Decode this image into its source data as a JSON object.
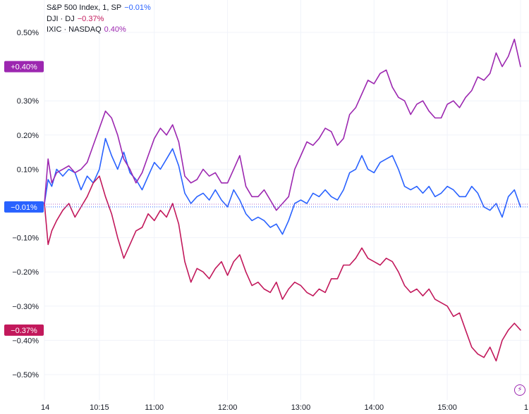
{
  "legend": [
    {
      "name": "S&P 500 Index, 1, SP",
      "value": "−0.01%",
      "color": "#2962ff"
    },
    {
      "name": "DJI · DJ",
      "value": "−0.37%",
      "color": "#c2185b"
    },
    {
      "name": "IXIC · NASDAQ",
      "value": "0.40%",
      "color": "#9c27b0"
    }
  ],
  "badges": [
    {
      "label": "+0.40%",
      "value": 0.4,
      "color": "#9c27b0"
    },
    {
      "label": "−0.01%",
      "value": -0.01,
      "color": "#2962ff"
    },
    {
      "label": "−0.37%",
      "value": -0.37,
      "color": "#c2185b"
    }
  ],
  "quick_action_icon": "lightning-icon",
  "chart_data": {
    "type": "line",
    "y_unit": "%",
    "ylim": [
      -0.55,
      0.55
    ],
    "xlim": [
      "09:30",
      "16:00"
    ],
    "y_ticks": [
      0.5,
      0.3,
      0.2,
      0.1,
      -0.1,
      -0.2,
      -0.3,
      -0.4,
      -0.5
    ],
    "y_tick_labels": [
      "0.50%",
      "0.30%",
      "0.20%",
      "0.10%",
      "−0.10%",
      "−0.20%",
      "−0.30%",
      "−0.40%",
      "−0.50%"
    ],
    "x_ticks": [
      "09:30",
      "10:15",
      "11:00",
      "12:00",
      "13:00",
      "14:00",
      "15:00",
      "16:00"
    ],
    "x_tick_labels": [
      "14",
      "10:15",
      "11:00",
      "12:00",
      "13:00",
      "14:00",
      "15:00",
      "1"
    ],
    "grid": true,
    "series": [
      {
        "name": "S&P 500 Index, 1, SP",
        "color": "#2962ff",
        "points": [
          [
            "09:30",
            0.0
          ],
          [
            "09:33",
            0.07
          ],
          [
            "09:36",
            0.05
          ],
          [
            "09:40",
            0.1
          ],
          [
            "09:45",
            0.08
          ],
          [
            "09:50",
            0.1
          ],
          [
            "09:55",
            0.09
          ],
          [
            "10:00",
            0.04
          ],
          [
            "10:05",
            0.08
          ],
          [
            "10:10",
            0.06
          ],
          [
            "10:15",
            0.1
          ],
          [
            "10:20",
            0.19
          ],
          [
            "10:25",
            0.14
          ],
          [
            "10:30",
            0.1
          ],
          [
            "10:35",
            0.15
          ],
          [
            "10:40",
            0.09
          ],
          [
            "10:45",
            0.07
          ],
          [
            "10:50",
            0.04
          ],
          [
            "10:55",
            0.08
          ],
          [
            "11:00",
            0.12
          ],
          [
            "11:05",
            0.1
          ],
          [
            "11:10",
            0.13
          ],
          [
            "11:15",
            0.16
          ],
          [
            "11:20",
            0.11
          ],
          [
            "11:25",
            0.03
          ],
          [
            "11:30",
            0.0
          ],
          [
            "11:35",
            0.02
          ],
          [
            "11:40",
            0.03
          ],
          [
            "11:45",
            0.01
          ],
          [
            "11:50",
            0.04
          ],
          [
            "11:55",
            0.01
          ],
          [
            "12:00",
            -0.01
          ],
          [
            "12:05",
            0.04
          ],
          [
            "12:10",
            0.01
          ],
          [
            "12:15",
            -0.03
          ],
          [
            "12:20",
            -0.05
          ],
          [
            "12:25",
            -0.04
          ],
          [
            "12:30",
            -0.05
          ],
          [
            "12:35",
            -0.07
          ],
          [
            "12:40",
            -0.06
          ],
          [
            "12:45",
            -0.09
          ],
          [
            "12:50",
            -0.05
          ],
          [
            "12:55",
            0.0
          ],
          [
            "13:00",
            0.01
          ],
          [
            "13:05",
            0.0
          ],
          [
            "13:10",
            0.03
          ],
          [
            "13:15",
            0.02
          ],
          [
            "13:20",
            0.04
          ],
          [
            "13:25",
            0.02
          ],
          [
            "13:30",
            0.01
          ],
          [
            "13:35",
            0.04
          ],
          [
            "13:40",
            0.09
          ],
          [
            "13:45",
            0.1
          ],
          [
            "13:50",
            0.14
          ],
          [
            "13:55",
            0.1
          ],
          [
            "14:00",
            0.09
          ],
          [
            "14:05",
            0.12
          ],
          [
            "14:10",
            0.13
          ],
          [
            "14:15",
            0.14
          ],
          [
            "14:20",
            0.1
          ],
          [
            "14:25",
            0.05
          ],
          [
            "14:30",
            0.04
          ],
          [
            "14:35",
            0.05
          ],
          [
            "14:40",
            0.03
          ],
          [
            "14:45",
            0.05
          ],
          [
            "14:50",
            0.02
          ],
          [
            "14:55",
            0.03
          ],
          [
            "15:00",
            0.05
          ],
          [
            "15:05",
            0.04
          ],
          [
            "15:10",
            0.02
          ],
          [
            "15:15",
            0.02
          ],
          [
            "15:20",
            0.05
          ],
          [
            "15:25",
            0.03
          ],
          [
            "15:30",
            -0.01
          ],
          [
            "15:35",
            -0.02
          ],
          [
            "15:40",
            0.0
          ],
          [
            "15:45",
            -0.04
          ],
          [
            "15:50",
            0.02
          ],
          [
            "15:55",
            0.04
          ],
          [
            "16:00",
            -0.01
          ]
        ]
      },
      {
        "name": "DJI · DJ",
        "color": "#c2185b",
        "points": [
          [
            "09:30",
            0.0
          ],
          [
            "09:33",
            -0.12
          ],
          [
            "09:36",
            -0.08
          ],
          [
            "09:40",
            -0.05
          ],
          [
            "09:45",
            -0.02
          ],
          [
            "09:50",
            0.0
          ],
          [
            "09:55",
            -0.04
          ],
          [
            "10:00",
            -0.01
          ],
          [
            "10:05",
            0.02
          ],
          [
            "10:10",
            0.06
          ],
          [
            "10:15",
            0.08
          ],
          [
            "10:20",
            0.02
          ],
          [
            "10:25",
            -0.03
          ],
          [
            "10:30",
            -0.1
          ],
          [
            "10:35",
            -0.16
          ],
          [
            "10:40",
            -0.12
          ],
          [
            "10:45",
            -0.08
          ],
          [
            "10:50",
            -0.07
          ],
          [
            "10:55",
            -0.03
          ],
          [
            "11:00",
            -0.05
          ],
          [
            "11:05",
            -0.02
          ],
          [
            "11:10",
            -0.04
          ],
          [
            "11:15",
            0.0
          ],
          [
            "11:20",
            -0.06
          ],
          [
            "11:25",
            -0.17
          ],
          [
            "11:30",
            -0.23
          ],
          [
            "11:35",
            -0.19
          ],
          [
            "11:40",
            -0.2
          ],
          [
            "11:45",
            -0.22
          ],
          [
            "11:50",
            -0.19
          ],
          [
            "11:55",
            -0.17
          ],
          [
            "12:00",
            -0.21
          ],
          [
            "12:05",
            -0.17
          ],
          [
            "12:10",
            -0.15
          ],
          [
            "12:15",
            -0.2
          ],
          [
            "12:20",
            -0.24
          ],
          [
            "12:25",
            -0.23
          ],
          [
            "12:30",
            -0.25
          ],
          [
            "12:35",
            -0.26
          ],
          [
            "12:40",
            -0.23
          ],
          [
            "12:45",
            -0.28
          ],
          [
            "12:50",
            -0.25
          ],
          [
            "12:55",
            -0.23
          ],
          [
            "13:00",
            -0.24
          ],
          [
            "13:05",
            -0.26
          ],
          [
            "13:10",
            -0.27
          ],
          [
            "13:15",
            -0.25
          ],
          [
            "13:20",
            -0.26
          ],
          [
            "13:25",
            -0.22
          ],
          [
            "13:30",
            -0.22
          ],
          [
            "13:35",
            -0.18
          ],
          [
            "13:40",
            -0.18
          ],
          [
            "13:45",
            -0.16
          ],
          [
            "13:50",
            -0.13
          ],
          [
            "13:55",
            -0.16
          ],
          [
            "14:00",
            -0.17
          ],
          [
            "14:05",
            -0.18
          ],
          [
            "14:10",
            -0.16
          ],
          [
            "14:15",
            -0.17
          ],
          [
            "14:20",
            -0.2
          ],
          [
            "14:25",
            -0.24
          ],
          [
            "14:30",
            -0.26
          ],
          [
            "14:35",
            -0.25
          ],
          [
            "14:40",
            -0.27
          ],
          [
            "14:45",
            -0.25
          ],
          [
            "14:50",
            -0.28
          ],
          [
            "14:55",
            -0.29
          ],
          [
            "15:00",
            -0.3
          ],
          [
            "15:05",
            -0.33
          ],
          [
            "15:10",
            -0.32
          ],
          [
            "15:15",
            -0.37
          ],
          [
            "15:20",
            -0.42
          ],
          [
            "15:25",
            -0.44
          ],
          [
            "15:30",
            -0.45
          ],
          [
            "15:35",
            -0.42
          ],
          [
            "15:40",
            -0.46
          ],
          [
            "15:45",
            -0.4
          ],
          [
            "15:50",
            -0.37
          ],
          [
            "15:55",
            -0.35
          ],
          [
            "16:00",
            -0.37
          ]
        ]
      },
      {
        "name": "IXIC · NASDAQ",
        "color": "#9c27b0",
        "points": [
          [
            "09:30",
            0.0
          ],
          [
            "09:33",
            0.13
          ],
          [
            "09:36",
            0.06
          ],
          [
            "09:40",
            0.09
          ],
          [
            "09:45",
            0.1
          ],
          [
            "09:50",
            0.11
          ],
          [
            "09:55",
            0.09
          ],
          [
            "10:00",
            0.1
          ],
          [
            "10:05",
            0.12
          ],
          [
            "10:10",
            0.17
          ],
          [
            "10:15",
            0.22
          ],
          [
            "10:20",
            0.27
          ],
          [
            "10:25",
            0.25
          ],
          [
            "10:30",
            0.2
          ],
          [
            "10:35",
            0.13
          ],
          [
            "10:40",
            0.1
          ],
          [
            "10:45",
            0.06
          ],
          [
            "10:50",
            0.09
          ],
          [
            "10:55",
            0.14
          ],
          [
            "11:00",
            0.19
          ],
          [
            "11:05",
            0.22
          ],
          [
            "11:10",
            0.2
          ],
          [
            "11:15",
            0.23
          ],
          [
            "11:20",
            0.18
          ],
          [
            "11:25",
            0.08
          ],
          [
            "11:30",
            0.06
          ],
          [
            "11:35",
            0.07
          ],
          [
            "11:40",
            0.1
          ],
          [
            "11:45",
            0.08
          ],
          [
            "11:50",
            0.09
          ],
          [
            "11:55",
            0.06
          ],
          [
            "12:00",
            0.06
          ],
          [
            "12:05",
            0.1
          ],
          [
            "12:10",
            0.14
          ],
          [
            "12:15",
            0.05
          ],
          [
            "12:20",
            0.02
          ],
          [
            "12:25",
            0.02
          ],
          [
            "12:30",
            0.04
          ],
          [
            "12:35",
            0.01
          ],
          [
            "12:40",
            -0.02
          ],
          [
            "12:45",
            0.0
          ],
          [
            "12:50",
            0.02
          ],
          [
            "12:55",
            0.1
          ],
          [
            "13:00",
            0.14
          ],
          [
            "13:05",
            0.18
          ],
          [
            "13:10",
            0.17
          ],
          [
            "13:15",
            0.19
          ],
          [
            "13:20",
            0.22
          ],
          [
            "13:25",
            0.21
          ],
          [
            "13:30",
            0.17
          ],
          [
            "13:35",
            0.19
          ],
          [
            "13:40",
            0.26
          ],
          [
            "13:45",
            0.28
          ],
          [
            "13:50",
            0.32
          ],
          [
            "13:55",
            0.36
          ],
          [
            "14:00",
            0.35
          ],
          [
            "14:05",
            0.38
          ],
          [
            "14:10",
            0.39
          ],
          [
            "14:15",
            0.34
          ],
          [
            "14:20",
            0.31
          ],
          [
            "14:25",
            0.3
          ],
          [
            "14:30",
            0.26
          ],
          [
            "14:35",
            0.29
          ],
          [
            "14:40",
            0.3
          ],
          [
            "14:45",
            0.27
          ],
          [
            "14:50",
            0.25
          ],
          [
            "14:55",
            0.25
          ],
          [
            "15:00",
            0.29
          ],
          [
            "15:05",
            0.3
          ],
          [
            "15:10",
            0.28
          ],
          [
            "15:15",
            0.31
          ],
          [
            "15:20",
            0.33
          ],
          [
            "15:25",
            0.37
          ],
          [
            "15:30",
            0.36
          ],
          [
            "15:35",
            0.38
          ],
          [
            "15:40",
            0.44
          ],
          [
            "15:45",
            0.4
          ],
          [
            "15:50",
            0.43
          ],
          [
            "15:55",
            0.48
          ],
          [
            "16:00",
            0.4
          ]
        ]
      }
    ]
  }
}
